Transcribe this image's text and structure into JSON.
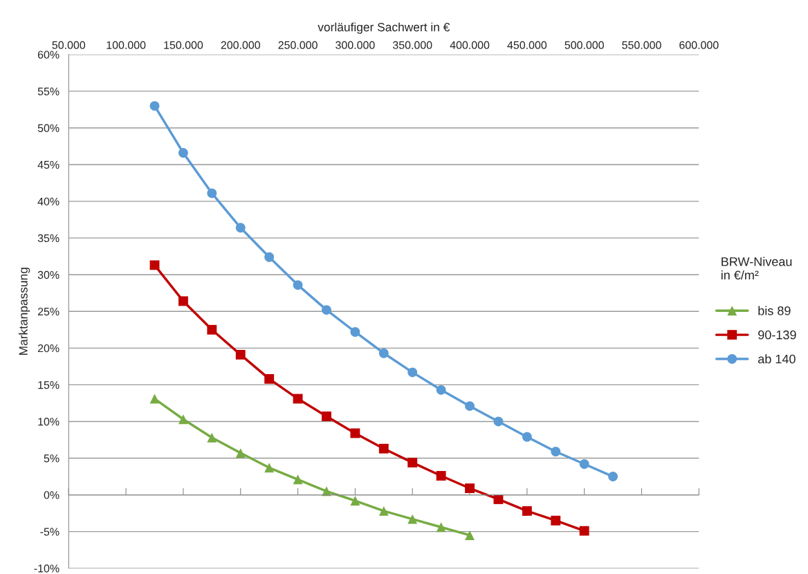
{
  "chart_data": {
    "type": "line",
    "xlabel": "vorläufiger Sachwert in €",
    "ylabel": "Marktanpassung",
    "legend_title": "BRW-Niveau\nin €/m²",
    "legend": "right",
    "grid": "y",
    "line_style": "solid",
    "xlim": [
      50000,
      600000
    ],
    "xticks": [
      {
        "value": 50000,
        "label": "50.000"
      },
      {
        "value": 100000,
        "label": "100.000"
      },
      {
        "value": 150000,
        "label": "150.000"
      },
      {
        "value": 200000,
        "label": "200.000"
      },
      {
        "value": 250000,
        "label": "250.000"
      },
      {
        "value": 300000,
        "label": "300.000"
      },
      {
        "value": 350000,
        "label": "350.000"
      },
      {
        "value": 400000,
        "label": "400.000"
      },
      {
        "value": 450000,
        "label": "450.000"
      },
      {
        "value": 500000,
        "label": "500.000"
      },
      {
        "value": 550000,
        "label": "550.000"
      },
      {
        "value": 600000,
        "label": "600.000"
      }
    ],
    "ylim": [
      -10,
      60
    ],
    "yticks": [
      {
        "value": -10,
        "label": "-10%"
      },
      {
        "value": -5,
        "label": "-5%"
      },
      {
        "value": 0,
        "label": "0%"
      },
      {
        "value": 5,
        "label": "5%"
      },
      {
        "value": 10,
        "label": "10%"
      },
      {
        "value": 15,
        "label": "15%"
      },
      {
        "value": 20,
        "label": "20%"
      },
      {
        "value": 25,
        "label": "25%"
      },
      {
        "value": 30,
        "label": "30%"
      },
      {
        "value": 35,
        "label": "35%"
      },
      {
        "value": 40,
        "label": "40%"
      },
      {
        "value": 45,
        "label": "45%"
      },
      {
        "value": 50,
        "label": "50%"
      },
      {
        "value": 55,
        "label": "55%"
      },
      {
        "value": 60,
        "label": "60%"
      }
    ],
    "series": [
      {
        "name": "bis 89",
        "color": "#77ab43",
        "marker": "triangle",
        "x": [
          125000,
          150000,
          175000,
          200000,
          225000,
          250000,
          275000,
          300000,
          325000,
          350000,
          375000,
          400000
        ],
        "values": [
          13.1,
          10.3,
          7.8,
          5.7,
          3.7,
          2.1,
          0.5,
          -0.8,
          -2.2,
          -3.3,
          -4.4,
          -5.5
        ]
      },
      {
        "name": "90-139",
        "color": "#c00000",
        "marker": "square",
        "x": [
          125000,
          150000,
          175000,
          200000,
          225000,
          250000,
          275000,
          300000,
          325000,
          350000,
          375000,
          400000,
          425000,
          450000,
          475000,
          500000
        ],
        "values": [
          31.3,
          26.4,
          22.5,
          19.1,
          15.8,
          13.1,
          10.7,
          8.4,
          6.3,
          4.4,
          2.6,
          0.9,
          -0.6,
          -2.2,
          -3.5,
          -4.9
        ]
      },
      {
        "name": "ab 140",
        "color": "#5b9bd5",
        "marker": "circle",
        "x": [
          125000,
          150000,
          175000,
          200000,
          225000,
          250000,
          275000,
          300000,
          325000,
          350000,
          375000,
          400000,
          425000,
          450000,
          475000,
          500000,
          525000
        ],
        "values": [
          53.0,
          46.6,
          41.1,
          36.4,
          32.4,
          28.6,
          25.2,
          22.2,
          19.3,
          16.7,
          14.3,
          12.1,
          10.0,
          7.9,
          5.9,
          4.2,
          2.5
        ]
      }
    ]
  }
}
